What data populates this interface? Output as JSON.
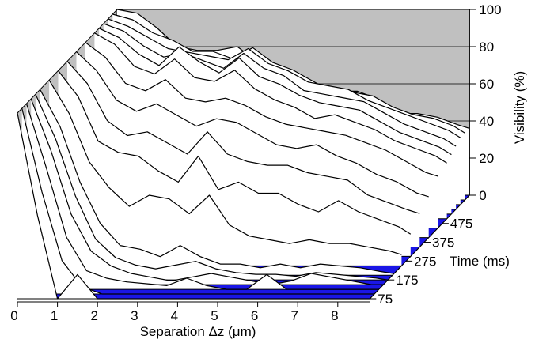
{
  "chart_data": {
    "type": "line",
    "view": "3d-waterfall",
    "xlabel": "Separation Δz (μm)",
    "ylabel": "Time (ms)",
    "zlabel": "Visibility (%)",
    "x_ticks": [
      "0",
      "1",
      "2",
      "3",
      "4",
      "5",
      "6",
      "7",
      "8"
    ],
    "y_ticks": [
      "75",
      "175",
      "275",
      "375",
      "475"
    ],
    "z_ticks": [
      "0",
      "20",
      "40",
      "60",
      "80",
      "100"
    ],
    "xlim": [
      0,
      8.8
    ],
    "zlim": [
      0,
      100
    ],
    "x": [
      0,
      0.5,
      1,
      1.5,
      2,
      2.5,
      3,
      3.5,
      4,
      4.5,
      5,
      5.5,
      6,
      6.5,
      7,
      7.5,
      8,
      8.5,
      8.8
    ],
    "grid": true,
    "colors": {
      "floor": "#1a16e6",
      "wall": "#c0c0c0",
      "ribbon": "#ffffff",
      "line": "#000000"
    },
    "series": [
      {
        "time": 75,
        "values": [
          100,
          45,
          0,
          13,
          0,
          0,
          0,
          0,
          0,
          0,
          0,
          0,
          0,
          0,
          0,
          0,
          0,
          0,
          0
        ]
      },
      {
        "time": 100,
        "values": [
          100,
          55,
          18,
          4,
          0,
          0,
          0,
          0,
          0,
          0,
          0,
          0,
          0,
          0,
          0,
          0,
          0,
          0,
          0
        ]
      },
      {
        "time": 125,
        "values": [
          100,
          65,
          28,
          10,
          6,
          4,
          3,
          2,
          6,
          2,
          0,
          0,
          8,
          0,
          0,
          0,
          0,
          0,
          0
        ]
      },
      {
        "time": 150,
        "values": [
          100,
          72,
          38,
          18,
          10,
          6,
          4,
          2,
          4,
          6,
          4,
          2,
          0,
          2,
          6,
          4,
          2,
          0,
          0
        ]
      },
      {
        "time": 175,
        "values": [
          100,
          76,
          45,
          22,
          12,
          8,
          6,
          8,
          10,
          6,
          4,
          3,
          3,
          2,
          4,
          3,
          2,
          1,
          0
        ]
      },
      {
        "time": 200,
        "values": [
          100,
          80,
          50,
          28,
          16,
          14,
          10,
          16,
          10,
          6,
          6,
          4,
          6,
          4,
          6,
          5,
          4,
          2,
          1
        ]
      },
      {
        "time": 250,
        "values": [
          100,
          82,
          56,
          42,
          32,
          38,
          36,
          28,
          38,
          22,
          16,
          14,
          12,
          14,
          12,
          12,
          10,
          8,
          6
        ]
      },
      {
        "time": 300,
        "values": [
          100,
          86,
          62,
          56,
          54,
          46,
          40,
          54,
          36,
          40,
          34,
          34,
          28,
          24,
          30,
          24,
          20,
          16,
          12
        ]
      },
      {
        "time": 350,
        "values": [
          100,
          88,
          68,
          60,
          62,
          56,
          50,
          62,
          50,
          46,
          44,
          44,
          40,
          38,
          36,
          28,
          24,
          20,
          18
        ]
      },
      {
        "time": 400,
        "values": [
          100,
          90,
          74,
          68,
          72,
          66,
          60,
          64,
          62,
          56,
          50,
          48,
          50,
          44,
          40,
          34,
          30,
          24,
          22
        ]
      },
      {
        "time": 450,
        "values": [
          100,
          92,
          78,
          74,
          80,
          70,
          68,
          70,
          66,
          60,
          56,
          54,
          52,
          50,
          46,
          42,
          36,
          30,
          28
        ]
      },
      {
        "time": 500,
        "values": [
          100,
          94,
          82,
          78,
          86,
          76,
          74,
          80,
          70,
          64,
          60,
          54,
          56,
          52,
          48,
          42,
          38,
          34,
          30
        ]
      },
      {
        "time": 525,
        "values": [
          100,
          95,
          86,
          80,
          90,
          82,
          76,
          84,
          74,
          70,
          64,
          60,
          58,
          56,
          50,
          44,
          40,
          36,
          32
        ]
      },
      {
        "time": 550,
        "values": [
          100,
          96,
          88,
          82,
          84,
          80,
          76,
          84,
          76,
          72,
          64,
          62,
          60,
          58,
          52,
          46,
          42,
          38,
          34
        ]
      },
      {
        "time": 575,
        "values": [
          100,
          96,
          90,
          84,
          82,
          80,
          78,
          84,
          76,
          72,
          66,
          64,
          62,
          56,
          52,
          48,
          44,
          40,
          36
        ]
      },
      {
        "time": 600,
        "values": [
          100,
          97,
          90,
          86,
          80,
          80,
          76,
          82,
          74,
          70,
          64,
          58,
          58,
          56,
          50,
          46,
          44,
          40,
          36
        ]
      },
      {
        "time": 625,
        "values": [
          100,
          98,
          90,
          80,
          78,
          78,
          80,
          72,
          66,
          60,
          60,
          56,
          56,
          52,
          44,
          44,
          42,
          38,
          36
        ]
      }
    ]
  }
}
